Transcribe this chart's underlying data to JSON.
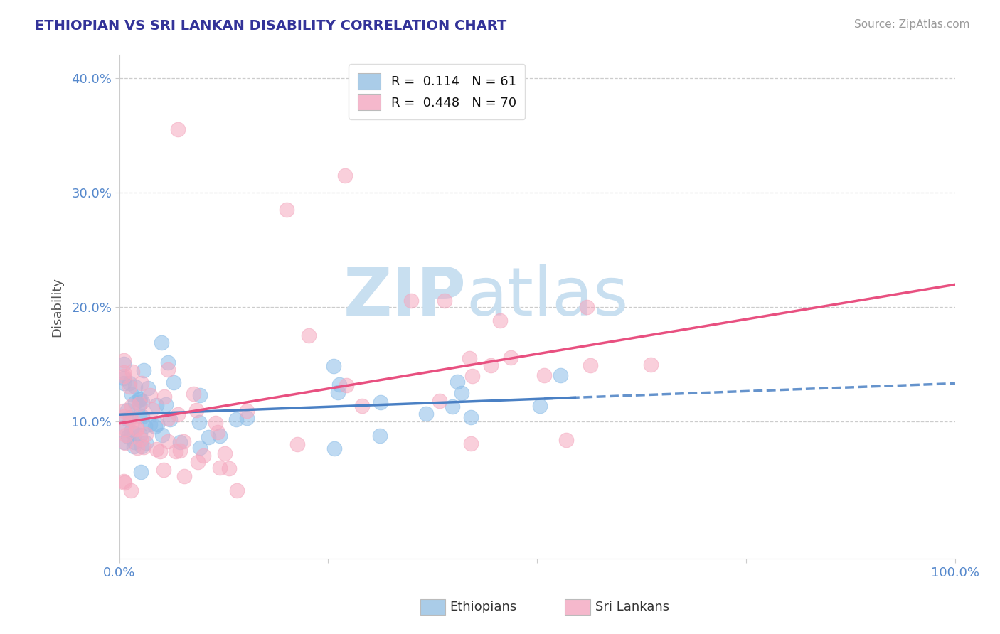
{
  "title": "ETHIOPIAN VS SRI LANKAN DISABILITY CORRELATION CHART",
  "source": "Source: ZipAtlas.com",
  "ylabel": "Disability",
  "xlim": [
    0,
    1.0
  ],
  "ylim": [
    -0.02,
    0.42
  ],
  "yticks": [
    0.1,
    0.2,
    0.3,
    0.4
  ],
  "ytick_labels": [
    "10.0%",
    "20.0%",
    "30.0%",
    "40.0%"
  ],
  "xtick_labels": [
    "0.0%",
    "100.0%"
  ],
  "ethiopian_R": 0.114,
  "ethiopian_N": 61,
  "srilankan_R": 0.448,
  "srilankan_N": 70,
  "ethiopian_color": "#8bbde8",
  "srilankan_color": "#f5a8bf",
  "ethiopian_line_color": "#4a80c4",
  "srilankan_line_color": "#e85080",
  "background_color": "#ffffff",
  "grid_color": "#cccccc",
  "watermark_zip": "ZIP",
  "watermark_atlas": "atlas",
  "watermark_color_zip": "#c8dff0",
  "watermark_color_atlas": "#c8dff0",
  "legend_ethiopian_box": "#aacce8",
  "legend_srilankan_box": "#f5b8cc",
  "title_color": "#333399",
  "source_color": "#999999",
  "tick_color": "#5588cc",
  "ylabel_color": "#555555",
  "bottom_label1": "Ethiopians",
  "bottom_label2": "Sri Lankans"
}
